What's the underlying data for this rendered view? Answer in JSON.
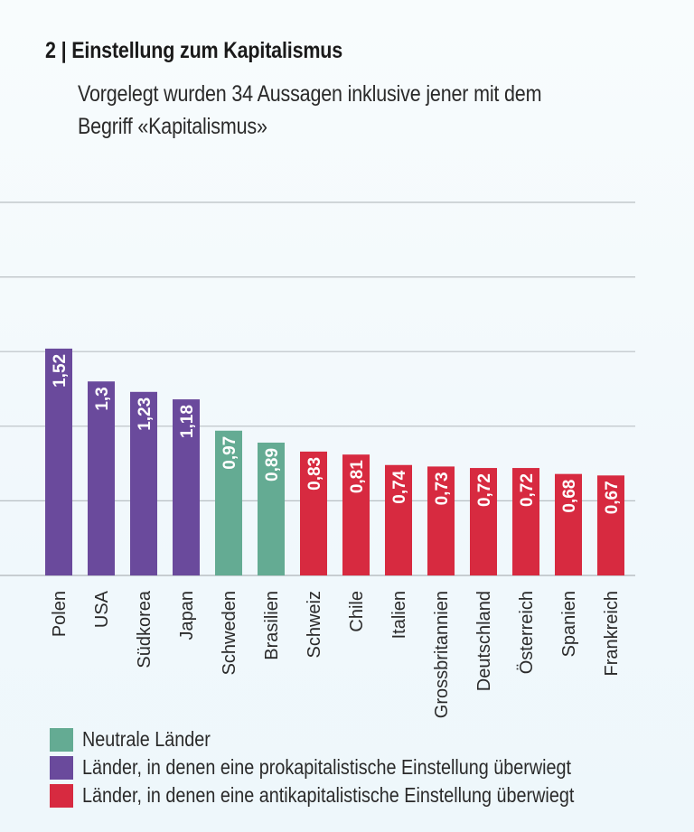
{
  "header": {
    "title": "2 | Einstellung zum Kapitalismus",
    "subtitle_line1": "Vorgelegt wurden 34 Aussagen inklusive jener mit dem",
    "subtitle_line2": "Begriff «Kapitalismus»"
  },
  "colors": {
    "neutral": "#64ab93",
    "pro": "#6a4a9c",
    "anti": "#d72a40",
    "grid": "#b9bfc3",
    "bar_label": "#ffffff",
    "tick_label": "#2a2a2a"
  },
  "legend": [
    {
      "key": "neutral",
      "label": "Neutrale Länder"
    },
    {
      "key": "pro",
      "label": "Länder, in denen eine prokapitalistische Einstellung überwiegt"
    },
    {
      "key": "anti",
      "label": "Länder, in denen eine antikapitalistische Einstellung überwiegt"
    }
  ],
  "chart_data": {
    "type": "bar",
    "title": "2 | Einstellung zum Kapitalismus",
    "subtitle": "Vorgelegt wurden 34 Aussagen inklusive jener mit dem Begriff «Kapitalismus»",
    "xlabel": "",
    "ylabel": "",
    "ylim": [
      0,
      2.5
    ],
    "grid": true,
    "grid_step": 0.5,
    "y_tick_labels_shown": false,
    "legend_position": "bottom-left",
    "categories": [
      "Polen",
      "USA",
      "Südkorea",
      "Japan",
      "Schweden",
      "Brasilien",
      "Schweiz",
      "Chile",
      "Italien",
      "Grossbritannien",
      "Deutschland",
      "Österreich",
      "Spanien",
      "Frankreich"
    ],
    "values": [
      1.52,
      1.3,
      1.23,
      1.18,
      0.97,
      0.89,
      0.83,
      0.81,
      0.74,
      0.73,
      0.72,
      0.72,
      0.68,
      0.67
    ],
    "value_labels": [
      "1,52",
      "1,3",
      "1,23",
      "1,18",
      "0,97",
      "0,89",
      "0,83",
      "0,81",
      "0,74",
      "0,73",
      "0,72",
      "0,72",
      "0,68",
      "0,67"
    ],
    "groups": [
      "pro",
      "pro",
      "pro",
      "pro",
      "neutral",
      "neutral",
      "anti",
      "anti",
      "anti",
      "anti",
      "anti",
      "anti",
      "anti",
      "anti"
    ]
  }
}
